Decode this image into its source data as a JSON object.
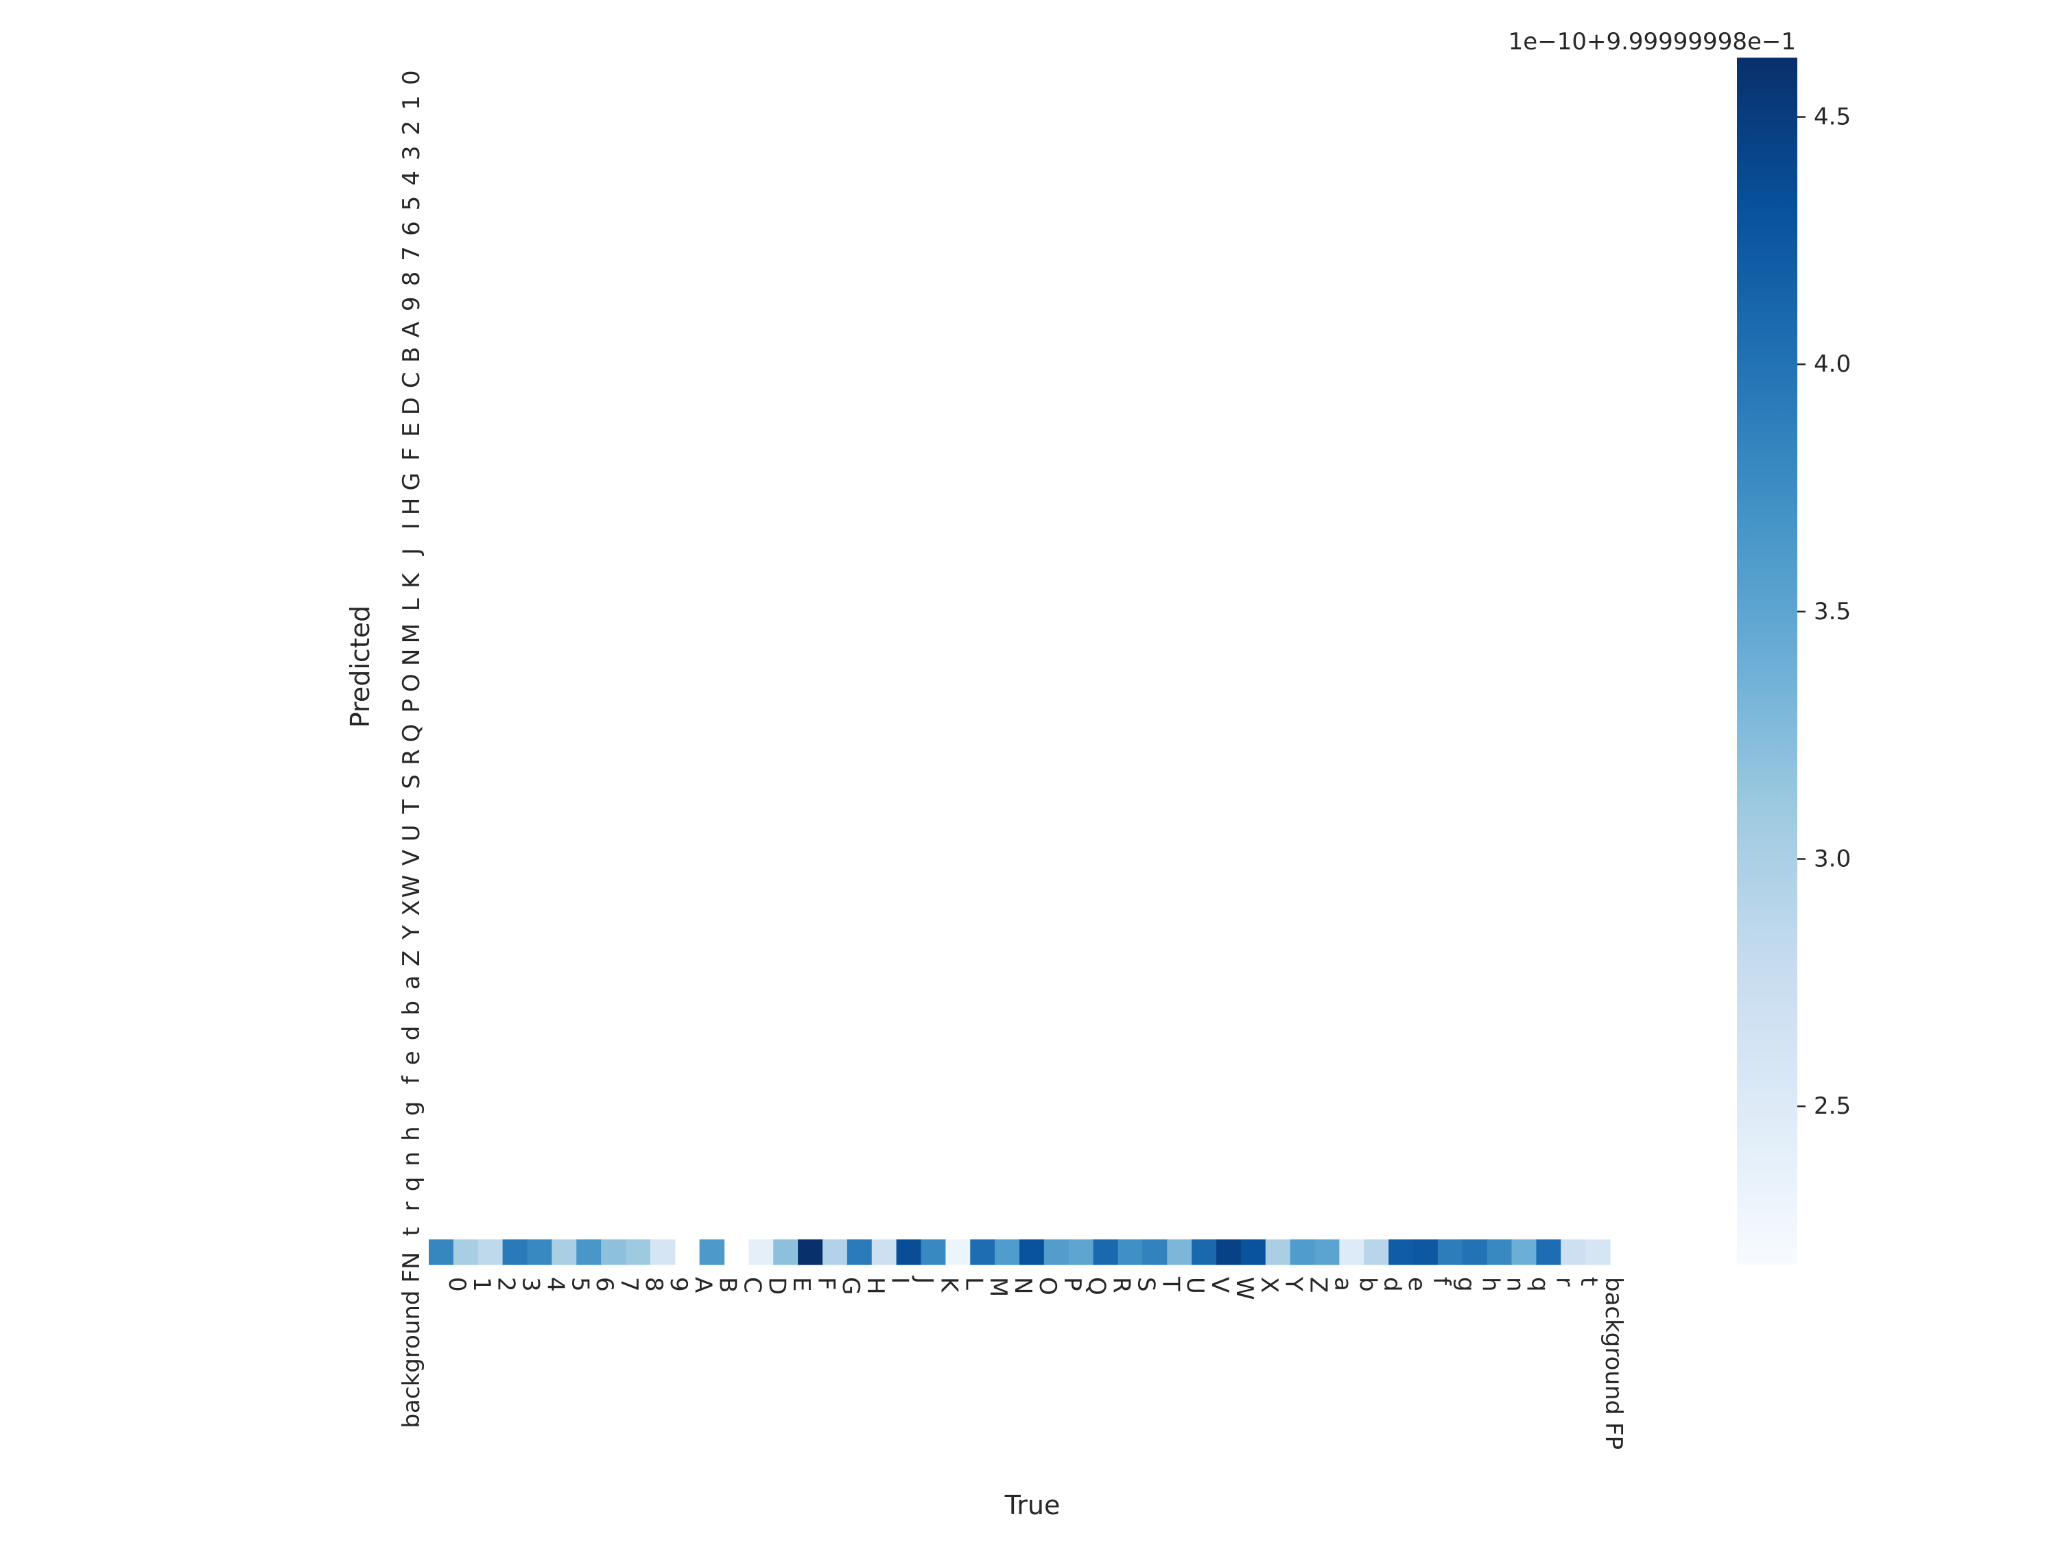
{
  "chart_data": {
    "type": "heatmap",
    "title": "",
    "xlabel": "True",
    "ylabel": "Predicted",
    "x_categories": [
      "0",
      "1",
      "2",
      "3",
      "4",
      "5",
      "6",
      "7",
      "8",
      "9",
      "A",
      "B",
      "C",
      "D",
      "E",
      "F",
      "G",
      "H",
      "I",
      "J",
      "K",
      "L",
      "M",
      "N",
      "O",
      "P",
      "Q",
      "R",
      "S",
      "T",
      "U",
      "V",
      "W",
      "X",
      "Y",
      "Z",
      "a",
      "b",
      "d",
      "e",
      "f",
      "g",
      "h",
      "n",
      "q",
      "r",
      "t",
      "background FP"
    ],
    "y_categories": [
      "0",
      "1",
      "2",
      "3",
      "4",
      "5",
      "6",
      "7",
      "8",
      "9",
      "A",
      "B",
      "C",
      "D",
      "E",
      "F",
      "G",
      "H",
      "I",
      "J",
      "K",
      "L",
      "M",
      "N",
      "O",
      "P",
      "Q",
      "R",
      "S",
      "T",
      "U",
      "V",
      "W",
      "X",
      "Y",
      "Z",
      "a",
      "b",
      "d",
      "e",
      "f",
      "g",
      "h",
      "n",
      "q",
      "r",
      "t",
      "background FN"
    ],
    "cells": {
      "row": "background FN",
      "values": [
        3.82,
        3.02,
        2.85,
        3.93,
        3.8,
        3.0,
        3.65,
        3.2,
        3.1,
        2.6,
        null,
        3.62,
        null,
        2.4,
        3.2,
        4.62,
        2.95,
        3.92,
        2.7,
        4.35,
        3.8,
        2.3,
        4.05,
        3.6,
        4.3,
        3.58,
        3.5,
        4.1,
        3.72,
        3.85,
        3.3,
        4.1,
        4.45,
        4.3,
        3.0,
        3.6,
        3.52,
        2.5,
        2.9,
        4.2,
        4.25,
        3.9,
        4.0,
        3.8,
        3.4,
        4.05,
        2.7,
        2.6
      ],
      "note_blank": "null = empty cell (no data)"
    },
    "colorbar": {
      "colormap": "Blues",
      "vmin": 2.18,
      "vmax": 4.62,
      "ticks": [
        2.5,
        3.0,
        3.5,
        4.0,
        4.5
      ],
      "tick_labels": [
        "2.5",
        "3.0",
        "3.5",
        "4.0",
        "4.5"
      ],
      "offset_label": "1e−10+9.99999998e−1"
    },
    "grid": false,
    "legend": "colorbar-right"
  }
}
